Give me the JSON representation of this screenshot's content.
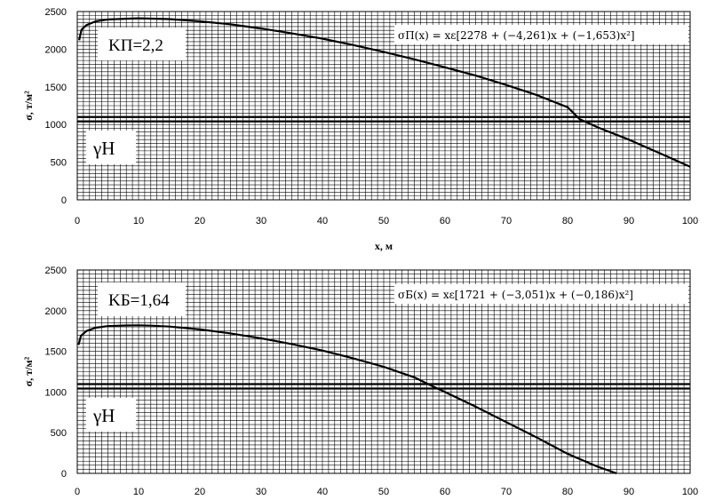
{
  "chart_data": [
    {
      "type": "line",
      "xlabel": "x, м",
      "ylabel": "σ, т/м²",
      "xlim": [
        0,
        100
      ],
      "ylim": [
        0,
        2500
      ],
      "x_ticks": [
        "0",
        "10",
        "20",
        "30",
        "40",
        "50",
        "60",
        "70",
        "80",
        "90",
        "100"
      ],
      "y_ticks": [
        "0",
        "500",
        "1000",
        "1500",
        "2000",
        "2500"
      ],
      "grid": true,
      "k_label": "KП=2,2",
      "gh_label": "γH",
      "formula": "σП(x) = xε[2278 + (−4,261)x + (−1,653)x²]",
      "hline": 1070,
      "series": [
        {
          "x": [
            0.3,
            0.7,
            1.5,
            3,
            5,
            8,
            10,
            15,
            20,
            25,
            30,
            35,
            40,
            45,
            50,
            55,
            60,
            65,
            70,
            75,
            80,
            82,
            85,
            90,
            95,
            100
          ],
          "values": [
            2120,
            2260,
            2320,
            2370,
            2395,
            2405,
            2410,
            2400,
            2370,
            2330,
            2275,
            2210,
            2140,
            2055,
            1965,
            1865,
            1760,
            1650,
            1525,
            1390,
            1230,
            1070,
            960,
            800,
            620,
            440
          ]
        }
      ]
    },
    {
      "type": "line",
      "xlabel": "",
      "ylabel": "σ, т/м²",
      "xlim": [
        0,
        100
      ],
      "ylim": [
        0,
        2500
      ],
      "x_ticks": [
        "0",
        "10",
        "20",
        "30",
        "40",
        "50",
        "60",
        "70",
        "80",
        "90",
        "100"
      ],
      "y_ticks": [
        "0",
        "500",
        "1000",
        "1500",
        "2000",
        "2500"
      ],
      "grid": true,
      "k_label": "KБ=1,64",
      "gh_label": "γH",
      "formula": "σБ(x) = xε[1721 + (−3,051)x + (−0,186)x²]",
      "hline": 1070,
      "series": [
        {
          "x": [
            0.2,
            0.6,
            1.5,
            3,
            5,
            8,
            10,
            12,
            15,
            20,
            25,
            30,
            35,
            40,
            45,
            50,
            55,
            58,
            60,
            65,
            70,
            75,
            80,
            85,
            88
          ],
          "values": [
            1580,
            1690,
            1750,
            1790,
            1810,
            1818,
            1820,
            1815,
            1805,
            1770,
            1720,
            1660,
            1590,
            1510,
            1415,
            1310,
            1180,
            1070,
            1000,
            820,
            630,
            440,
            240,
            80,
            0
          ]
        }
      ]
    }
  ]
}
